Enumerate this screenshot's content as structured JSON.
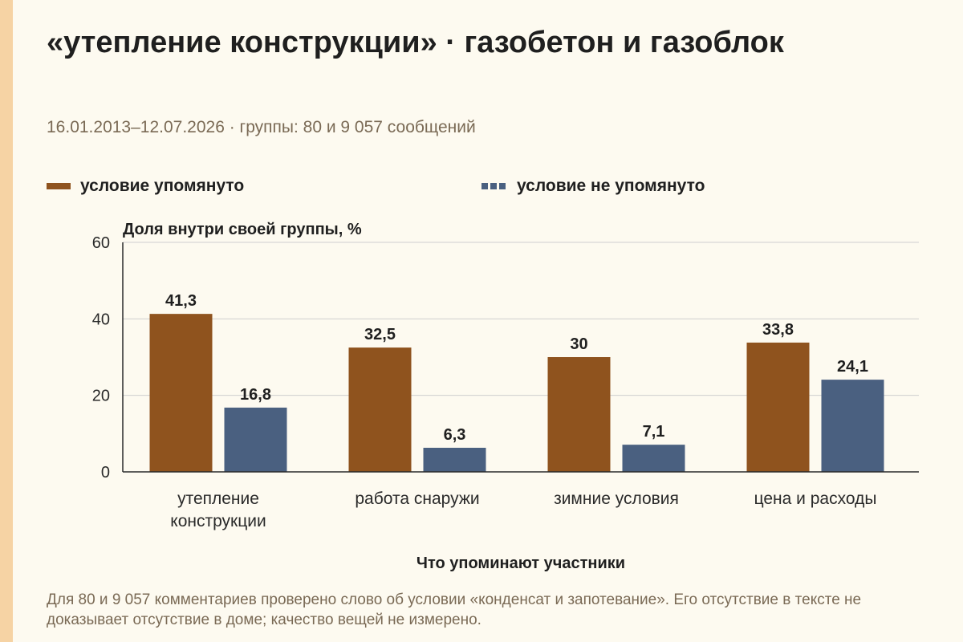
{
  "header": {
    "title": "«утепление конструкции» · газобетон и газоблок",
    "subtitle": "16.01.2013–12.07.2026 · группы: 80 и 9 057 сообщений"
  },
  "legend": [
    {
      "label": "условие упомянуто",
      "color": "#8f531e",
      "style": "solid"
    },
    {
      "label": "условие не упомянуто",
      "color": "#4a6080",
      "style": "dashed"
    }
  ],
  "chart_data": {
    "type": "bar",
    "ylabel": "Доля внутри своей группы, %",
    "xlabel": "Что упоминают участники",
    "ylim": [
      0,
      60
    ],
    "yticks": [
      0,
      20,
      40,
      60
    ],
    "grid": true,
    "legend_position": "top",
    "categories": [
      [
        "утепление",
        "конструкции"
      ],
      [
        "работа снаружи"
      ],
      [
        "зимние условия"
      ],
      [
        "цена и расходы"
      ]
    ],
    "series": [
      {
        "name": "условие упомянуто",
        "color": "#8f531e",
        "values": [
          41.3,
          32.5,
          30,
          33.8
        ]
      },
      {
        "name": "условие не упомянуто",
        "color": "#4a6080",
        "values": [
          16.8,
          6.3,
          7.1,
          24.1
        ]
      }
    ]
  },
  "footnote": "Для 80 и 9 057 комментариев проверено слово об условии «конденсат и запотевание». Его отсутствие в тексте не доказывает отсутствие в доме; качество вещей не измерено."
}
